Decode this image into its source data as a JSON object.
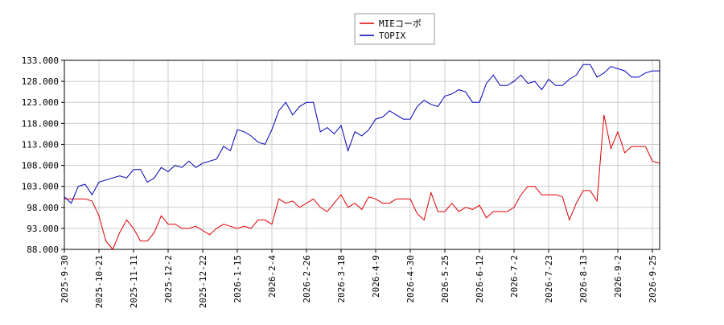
{
  "chart_data": {
    "type": "line",
    "categories": [
      "2025-9-30",
      null,
      null,
      null,
      null,
      "2025-10-21",
      null,
      null,
      null,
      null,
      "2025-11-11",
      null,
      null,
      null,
      null,
      "2025-12-2",
      null,
      null,
      null,
      null,
      "2025-12-22",
      null,
      null,
      null,
      null,
      "2026-1-15",
      null,
      null,
      null,
      null,
      "2026-2-4",
      null,
      null,
      null,
      null,
      "2026-2-26",
      null,
      null,
      null,
      null,
      "2026-3-18",
      null,
      null,
      null,
      null,
      "2026-4-9",
      null,
      null,
      null,
      null,
      "2026-4-30",
      null,
      null,
      null,
      null,
      "2026-5-25",
      null,
      null,
      null,
      null,
      "2026-6-12",
      null,
      null,
      null,
      null,
      "2026-7-2",
      null,
      null,
      null,
      null,
      "2026-7-23",
      null,
      null,
      null,
      null,
      "2026-8-13",
      null,
      null,
      null,
      null,
      "2026-9-2",
      null,
      null,
      null,
      null,
      "2026-9-25",
      null
    ],
    "series": [
      {
        "name": "MIEコーポ",
        "color": "#dd0000",
        "values": [
          100,
          100,
          100,
          100,
          99.5,
          96,
          90,
          88,
          92,
          95,
          93,
          90,
          90,
          92,
          96,
          94,
          94,
          93,
          93,
          93.5,
          92.5,
          91.5,
          93,
          94,
          93.5,
          93,
          93.5,
          93,
          95,
          95,
          94,
          100,
          99,
          99.5,
          98,
          99,
          100,
          98,
          97,
          99,
          101,
          98,
          99,
          97.5,
          100.5,
          100,
          99,
          99,
          100,
          100,
          100,
          96.5,
          95,
          101.5,
          97,
          97,
          99,
          97,
          98,
          97.5,
          98.5,
          95.5,
          97,
          97,
          97,
          98,
          101,
          103,
          103,
          101,
          101,
          101,
          100.5,
          95,
          99,
          102,
          102,
          99.5,
          120,
          112,
          116,
          111,
          112.5,
          112.5,
          112.5,
          109,
          108.5
        ]
      },
      {
        "name": "TOPIX",
        "color": "#0000bb",
        "values": [
          100.5,
          99,
          103,
          103.5,
          101,
          104,
          104.5,
          105,
          105.5,
          105,
          107,
          107,
          104,
          105,
          107.5,
          106.5,
          108,
          107.5,
          109,
          107.5,
          108.5,
          109,
          109.5,
          112.5,
          111.5,
          116.5,
          116,
          115,
          113.5,
          113,
          116.5,
          121,
          123,
          120,
          122,
          123,
          123,
          116,
          117,
          115.5,
          117.5,
          111.5,
          116,
          115,
          116.5,
          119,
          119.5,
          121,
          120,
          119,
          119,
          122,
          123.5,
          122.5,
          122,
          124.5,
          125,
          126,
          125.5,
          123,
          123,
          127.5,
          129.5,
          127,
          127,
          128,
          129.5,
          127.5,
          128,
          126,
          128.5,
          127,
          127,
          128.5,
          129.5,
          132,
          132,
          129,
          130,
          131.5,
          131,
          130.5,
          129,
          129,
          130,
          130.5,
          130.5
        ]
      }
    ],
    "ylim": [
      88,
      133
    ],
    "yticks": [
      {
        "value": 88,
        "label": "88.000"
      },
      {
        "value": 93,
        "label": "93.000"
      },
      {
        "value": 98,
        "label": "98.000"
      },
      {
        "value": 103,
        "label": "103.000"
      },
      {
        "value": 108,
        "label": "108.000"
      },
      {
        "value": 113,
        "label": "113.000"
      },
      {
        "value": 118,
        "label": "118.000"
      },
      {
        "value": 123,
        "label": "123.000"
      },
      {
        "value": 128,
        "label": "128.000"
      },
      {
        "value": 133,
        "label": "133.000"
      }
    ],
    "grid": true
  }
}
